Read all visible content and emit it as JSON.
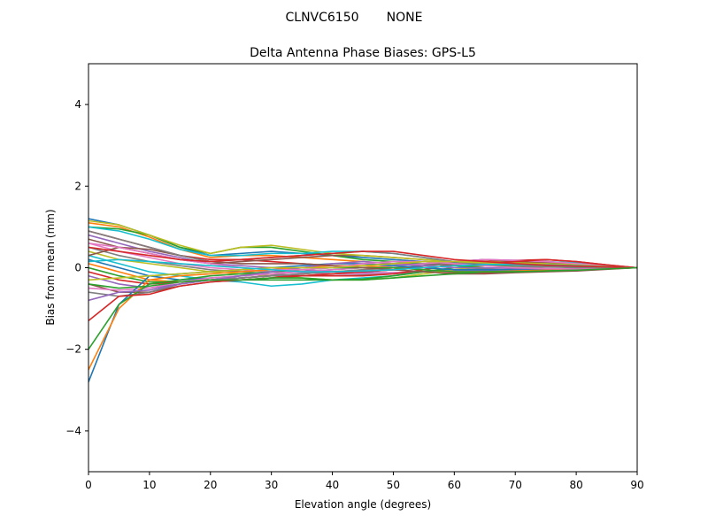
{
  "suptitle": "CLNVC6150       NONE",
  "chart_data": {
    "type": "line",
    "title": "Delta Antenna Phase Biases: GPS-L5",
    "xlabel": "Elevation angle (degrees)",
    "ylabel": "Bias from mean (mm)",
    "xlim": [
      0,
      90
    ],
    "ylim": [
      -5,
      5
    ],
    "xticks": [
      0,
      10,
      20,
      30,
      40,
      50,
      60,
      70,
      80,
      90
    ],
    "yticks": [
      -4,
      -2,
      0,
      2,
      4
    ],
    "xtick_labels": [
      "0",
      "10",
      "20",
      "30",
      "40",
      "50",
      "60",
      "70",
      "80",
      "90"
    ],
    "ytick_labels": [
      "−4",
      "−2",
      "0",
      "2",
      "4"
    ],
    "grid": false,
    "x": [
      0,
      5,
      10,
      15,
      20,
      25,
      30,
      35,
      40,
      45,
      50,
      55,
      60,
      65,
      70,
      75,
      80,
      85,
      90
    ],
    "series": [
      {
        "color": "#1f77b4",
        "values": [
          1.2,
          1.05,
          0.8,
          0.5,
          0.3,
          0.35,
          0.4,
          0.35,
          0.3,
          0.25,
          0.2,
          0.15,
          0.1,
          0.1,
          0.08,
          0.06,
          0.04,
          0.02,
          0
        ]
      },
      {
        "color": "#ff7f0e",
        "values": [
          1.1,
          1.0,
          0.75,
          0.45,
          0.25,
          0.3,
          0.3,
          0.25,
          0.2,
          0.15,
          0.1,
          0.1,
          0.08,
          0.06,
          0.05,
          0.04,
          0.03,
          0.02,
          0
        ]
      },
      {
        "color": "#2ca02c",
        "values": [
          1.0,
          0.95,
          0.8,
          0.5,
          0.35,
          0.5,
          0.5,
          0.4,
          0.3,
          0.2,
          0.15,
          0.1,
          0.05,
          0.05,
          0.04,
          0.03,
          0.02,
          0.01,
          0
        ]
      },
      {
        "color": "#d62728",
        "values": [
          0.9,
          0.7,
          0.5,
          0.3,
          0.2,
          0.2,
          0.15,
          0.1,
          0.05,
          0.0,
          -0.05,
          -0.1,
          -0.12,
          -0.12,
          -0.1,
          -0.08,
          -0.06,
          -0.03,
          0
        ]
      },
      {
        "color": "#9467bd",
        "values": [
          0.8,
          0.6,
          0.4,
          0.25,
          0.1,
          0.05,
          0.0,
          -0.05,
          -0.1,
          -0.12,
          -0.12,
          -0.1,
          -0.08,
          -0.07,
          -0.06,
          -0.05,
          -0.04,
          -0.02,
          0
        ]
      },
      {
        "color": "#8c564b",
        "values": [
          0.7,
          0.5,
          0.35,
          0.2,
          0.1,
          0.15,
          0.2,
          0.25,
          0.3,
          0.3,
          0.25,
          0.2,
          0.15,
          0.12,
          0.1,
          0.08,
          0.06,
          0.03,
          0
        ]
      },
      {
        "color": "#e377c2",
        "values": [
          0.6,
          0.4,
          0.25,
          0.1,
          0.0,
          -0.05,
          -0.1,
          -0.12,
          -0.15,
          -0.15,
          -0.12,
          -0.1,
          -0.1,
          -0.1,
          -0.08,
          -0.06,
          -0.05,
          -0.02,
          0
        ]
      },
      {
        "color": "#7f7f7f",
        "values": [
          0.5,
          0.3,
          0.15,
          0.05,
          -0.05,
          -0.1,
          -0.15,
          -0.2,
          -0.2,
          -0.18,
          -0.15,
          -0.1,
          -0.05,
          -0.02,
          0.0,
          0.02,
          0.03,
          0.02,
          0
        ]
      },
      {
        "color": "#bcbd22",
        "values": [
          0.4,
          0.2,
          0.1,
          0.0,
          -0.1,
          -0.15,
          -0.2,
          -0.25,
          -0.3,
          -0.3,
          -0.25,
          -0.15,
          -0.05,
          0.05,
          0.1,
          0.12,
          0.1,
          0.05,
          0
        ]
      },
      {
        "color": "#17becf",
        "values": [
          0.3,
          0.1,
          -0.1,
          -0.2,
          -0.3,
          -0.35,
          -0.45,
          -0.4,
          -0.3,
          -0.25,
          -0.2,
          -0.1,
          0.0,
          0.1,
          0.15,
          0.15,
          0.12,
          0.06,
          0
        ]
      },
      {
        "color": "#1f77b4",
        "values": [
          0.2,
          0.0,
          -0.2,
          -0.3,
          -0.25,
          -0.2,
          -0.15,
          -0.1,
          -0.05,
          0.0,
          0.05,
          0.1,
          0.12,
          0.12,
          0.1,
          0.08,
          0.06,
          0.03,
          0
        ]
      },
      {
        "color": "#ff7f0e",
        "values": [
          0.1,
          -0.1,
          -0.3,
          -0.35,
          -0.3,
          -0.25,
          -0.2,
          -0.15,
          -0.1,
          -0.05,
          0.0,
          0.05,
          0.1,
          0.12,
          0.12,
          0.1,
          0.07,
          0.03,
          0
        ]
      },
      {
        "color": "#2ca02c",
        "values": [
          0.0,
          -0.2,
          -0.35,
          -0.35,
          -0.3,
          -0.3,
          -0.3,
          -0.3,
          -0.3,
          -0.28,
          -0.2,
          -0.1,
          0.0,
          0.05,
          0.08,
          0.1,
          0.08,
          0.04,
          0
        ]
      },
      {
        "color": "#d62728",
        "values": [
          -0.1,
          -0.3,
          -0.4,
          -0.35,
          -0.3,
          -0.25,
          -0.2,
          -0.2,
          -0.2,
          -0.2,
          -0.15,
          -0.05,
          0.1,
          0.15,
          0.18,
          0.2,
          0.15,
          0.07,
          0
        ]
      },
      {
        "color": "#9467bd",
        "values": [
          -0.2,
          -0.4,
          -0.5,
          -0.4,
          -0.3,
          -0.25,
          -0.2,
          -0.15,
          -0.1,
          -0.1,
          -0.05,
          0.05,
          0.15,
          0.2,
          0.18,
          0.15,
          0.1,
          0.05,
          0
        ]
      },
      {
        "color": "#8c564b",
        "values": [
          -0.4,
          -0.6,
          -0.6,
          -0.45,
          -0.35,
          -0.3,
          -0.25,
          -0.2,
          -0.15,
          -0.1,
          -0.05,
          0.05,
          0.15,
          0.2,
          0.15,
          0.12,
          0.08,
          0.04,
          0
        ]
      },
      {
        "color": "#e377c2",
        "values": [
          -0.5,
          -0.55,
          -0.5,
          -0.35,
          -0.25,
          -0.2,
          -0.15,
          -0.1,
          -0.05,
          0.0,
          0.05,
          0.1,
          0.15,
          0.2,
          0.18,
          0.15,
          0.1,
          0.05,
          0
        ]
      },
      {
        "color": "#7f7f7f",
        "values": [
          -0.6,
          -0.7,
          -0.6,
          -0.4,
          -0.3,
          -0.25,
          -0.2,
          -0.15,
          -0.1,
          -0.05,
          0.0,
          0.05,
          0.1,
          0.1,
          0.1,
          0.08,
          0.06,
          0.03,
          0
        ]
      },
      {
        "color": "#bcbd22",
        "values": [
          1.15,
          1.05,
          0.8,
          0.55,
          0.35,
          0.5,
          0.55,
          0.45,
          0.35,
          0.3,
          0.25,
          0.2,
          0.15,
          0.15,
          0.12,
          0.1,
          0.07,
          0.03,
          0
        ]
      },
      {
        "color": "#17becf",
        "values": [
          1.0,
          0.9,
          0.7,
          0.45,
          0.3,
          0.3,
          0.35,
          0.35,
          0.4,
          0.4,
          0.35,
          0.25,
          0.15,
          0.1,
          0.08,
          0.06,
          0.04,
          0.02,
          0
        ]
      },
      {
        "color": "#1f77b4",
        "values": [
          -2.8,
          -0.9,
          -0.2,
          -0.15,
          -0.1,
          -0.05,
          0.0,
          0.05,
          0.1,
          0.1,
          0.05,
          0.0,
          -0.05,
          -0.05,
          -0.05,
          -0.04,
          -0.03,
          -0.02,
          0
        ]
      },
      {
        "color": "#ff7f0e",
        "values": [
          -2.5,
          -1.0,
          -0.3,
          -0.2,
          -0.15,
          -0.1,
          -0.05,
          0.0,
          0.05,
          0.05,
          0.0,
          -0.05,
          -0.1,
          -0.1,
          -0.08,
          -0.06,
          -0.05,
          -0.02,
          0
        ]
      },
      {
        "color": "#2ca02c",
        "values": [
          -2.0,
          -0.9,
          -0.4,
          -0.3,
          -0.2,
          -0.15,
          -0.1,
          -0.05,
          0.0,
          0.0,
          0.0,
          -0.05,
          -0.1,
          -0.1,
          -0.1,
          -0.08,
          -0.06,
          -0.03,
          0
        ]
      },
      {
        "color": "#d62728",
        "values": [
          -1.3,
          -0.7,
          -0.65,
          -0.45,
          -0.35,
          -0.3,
          -0.25,
          -0.2,
          -0.15,
          -0.1,
          -0.05,
          0.0,
          0.05,
          0.1,
          0.15,
          0.2,
          0.15,
          0.07,
          0
        ]
      },
      {
        "color": "#9467bd",
        "values": [
          -0.8,
          -0.6,
          -0.55,
          -0.4,
          -0.3,
          -0.2,
          -0.1,
          0.0,
          0.1,
          0.15,
          0.1,
          0.05,
          0.0,
          0.0,
          -0.02,
          -0.03,
          -0.03,
          -0.02,
          0
        ]
      },
      {
        "color": "#8c564b",
        "values": [
          0.3,
          0.5,
          0.45,
          0.3,
          0.15,
          0.1,
          0.1,
          0.1,
          0.05,
          0.0,
          -0.05,
          -0.1,
          -0.15,
          -0.15,
          -0.12,
          -0.1,
          -0.08,
          -0.04,
          0
        ]
      },
      {
        "color": "#e377c2",
        "values": [
          0.6,
          0.5,
          0.35,
          0.2,
          0.1,
          0.0,
          -0.05,
          -0.05,
          0.0,
          0.1,
          0.15,
          0.15,
          0.1,
          0.05,
          0.0,
          -0.02,
          -0.03,
          -0.02,
          0
        ]
      },
      {
        "color": "#7f7f7f",
        "values": [
          0.9,
          0.7,
          0.5,
          0.3,
          0.15,
          0.2,
          0.25,
          0.3,
          0.35,
          0.4,
          0.35,
          0.25,
          0.15,
          0.1,
          0.05,
          0.02,
          0.0,
          0.0,
          0
        ]
      },
      {
        "color": "#bcbd22",
        "values": [
          -0.3,
          -0.25,
          -0.2,
          -0.15,
          -0.1,
          -0.05,
          0.0,
          0.0,
          0.0,
          0.05,
          0.1,
          0.15,
          0.15,
          0.12,
          0.1,
          0.07,
          0.05,
          0.02,
          0
        ]
      },
      {
        "color": "#17becf",
        "values": [
          0.15,
          0.2,
          0.15,
          0.1,
          0.05,
          0.0,
          -0.05,
          -0.1,
          -0.1,
          -0.08,
          -0.05,
          0.0,
          0.05,
          0.08,
          0.08,
          0.07,
          0.05,
          0.02,
          0
        ]
      },
      {
        "color": "#d62728",
        "values": [
          0.5,
          0.4,
          0.3,
          0.2,
          0.15,
          0.2,
          0.25,
          0.3,
          0.35,
          0.4,
          0.4,
          0.3,
          0.2,
          0.15,
          0.1,
          0.06,
          0.04,
          0.02,
          0
        ]
      },
      {
        "color": "#2ca02c",
        "values": [
          -0.4,
          -0.5,
          -0.45,
          -0.35,
          -0.3,
          -0.3,
          -0.25,
          -0.25,
          -0.3,
          -0.3,
          -0.25,
          -0.2,
          -0.15,
          -0.1,
          -0.1,
          -0.08,
          -0.06,
          -0.03,
          0
        ]
      }
    ]
  }
}
